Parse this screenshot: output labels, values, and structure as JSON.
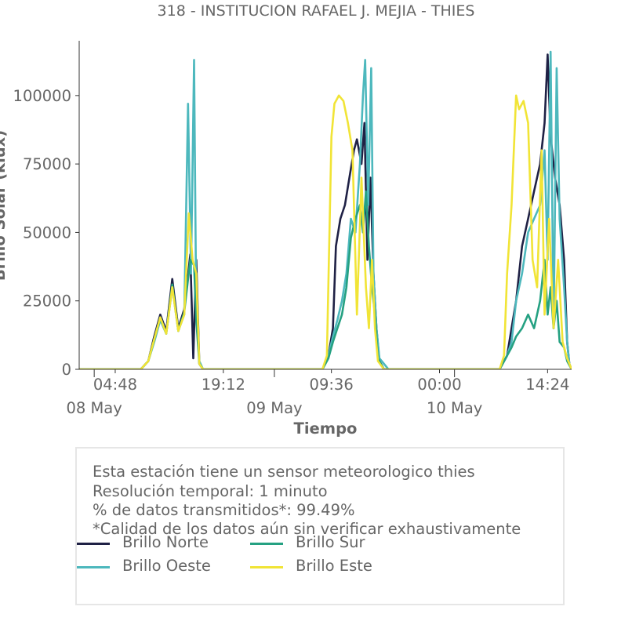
{
  "chart_data": {
    "type": "line",
    "title": "318 - INSTITUCION RAFAEL J. MEJIA - THIES",
    "xlabel": "Tiempo",
    "ylabel": "Brillo Solar (klux)",
    "ylim": [
      0,
      120000
    ],
    "yticks": [
      0,
      25000,
      50000,
      75000,
      100000
    ],
    "x_range_hours": [
      0,
      65.6
    ],
    "x_time_ticks": [
      {
        "h": 4.8,
        "label": "04:48"
      },
      {
        "h": 19.2,
        "label": "19:12"
      },
      {
        "h": 33.6,
        "label": "09:36"
      },
      {
        "h": 48.0,
        "label": "00:00"
      },
      {
        "h": 62.4,
        "label": "14:24"
      }
    ],
    "x_date_ticks": [
      {
        "h": 2.0,
        "label": "08 May"
      },
      {
        "h": 26.0,
        "label": "09 May"
      },
      {
        "h": 50.0,
        "label": "10 May"
      }
    ],
    "series": [
      {
        "name": "Brillo Norte",
        "color": "#1f2145",
        "points": [
          [
            0,
            0
          ],
          [
            8.2,
            0
          ],
          [
            9.2,
            3000
          ],
          [
            10,
            12000
          ],
          [
            10.8,
            20000
          ],
          [
            11.6,
            14000
          ],
          [
            12.4,
            33000
          ],
          [
            13.2,
            15000
          ],
          [
            14,
            22000
          ],
          [
            14.8,
            42000
          ],
          [
            15.2,
            4000
          ],
          [
            15.6,
            40000
          ],
          [
            16,
            2000
          ],
          [
            16.5,
            0
          ],
          [
            32.4,
            0
          ],
          [
            33.2,
            5000
          ],
          [
            33.8,
            15000
          ],
          [
            34.2,
            45000
          ],
          [
            34.8,
            55000
          ],
          [
            35.4,
            60000
          ],
          [
            36,
            70000
          ],
          [
            36.6,
            80000
          ],
          [
            37,
            84000
          ],
          [
            37.6,
            75000
          ],
          [
            38,
            90000
          ],
          [
            38.4,
            40000
          ],
          [
            38.8,
            70000
          ],
          [
            39.2,
            35000
          ],
          [
            39.6,
            15000
          ],
          [
            40,
            3000
          ],
          [
            40.6,
            0
          ],
          [
            56,
            0
          ],
          [
            57,
            5000
          ],
          [
            57.6,
            15000
          ],
          [
            58.2,
            25000
          ],
          [
            59,
            45000
          ],
          [
            59.8,
            55000
          ],
          [
            60.6,
            65000
          ],
          [
            61.4,
            75000
          ],
          [
            62,
            90000
          ],
          [
            62.4,
            115000
          ],
          [
            62.8,
            85000
          ],
          [
            63.4,
            70000
          ],
          [
            64,
            60000
          ],
          [
            64.6,
            40000
          ],
          [
            65,
            10000
          ],
          [
            65.3,
            2000
          ],
          [
            65.6,
            0
          ]
        ]
      },
      {
        "name": "Brillo Oeste",
        "color": "#4db8bd",
        "points": [
          [
            0,
            0
          ],
          [
            8.2,
            0
          ],
          [
            9.2,
            3000
          ],
          [
            10,
            10000
          ],
          [
            10.8,
            18000
          ],
          [
            11.6,
            13000
          ],
          [
            12.4,
            30000
          ],
          [
            13.2,
            14000
          ],
          [
            14,
            20000
          ],
          [
            14.5,
            97000
          ],
          [
            14.9,
            35000
          ],
          [
            15.3,
            113000
          ],
          [
            15.6,
            20000
          ],
          [
            16,
            3000
          ],
          [
            16.5,
            0
          ],
          [
            32.4,
            0
          ],
          [
            33.2,
            5000
          ],
          [
            33.8,
            12000
          ],
          [
            34.4,
            18000
          ],
          [
            35,
            25000
          ],
          [
            35.6,
            35000
          ],
          [
            36.2,
            55000
          ],
          [
            36.8,
            50000
          ],
          [
            37.4,
            75000
          ],
          [
            37.8,
            100000
          ],
          [
            38.1,
            113000
          ],
          [
            38.5,
            60000
          ],
          [
            38.9,
            110000
          ],
          [
            39.2,
            35000
          ],
          [
            39.6,
            15000
          ],
          [
            40,
            4000
          ],
          [
            40.6,
            2000
          ],
          [
            41.2,
            0
          ],
          [
            56,
            0
          ],
          [
            57,
            5000
          ],
          [
            57.6,
            10000
          ],
          [
            58.2,
            25000
          ],
          [
            59,
            35000
          ],
          [
            59.8,
            50000
          ],
          [
            60.6,
            55000
          ],
          [
            61.4,
            60000
          ],
          [
            62,
            80000
          ],
          [
            62.4,
            40000
          ],
          [
            62.8,
            116000
          ],
          [
            63.2,
            15000
          ],
          [
            63.6,
            110000
          ],
          [
            64,
            55000
          ],
          [
            64.6,
            30000
          ],
          [
            65,
            10000
          ],
          [
            65.3,
            2000
          ],
          [
            65.6,
            0
          ]
        ]
      },
      {
        "name": "Brillo Sur",
        "color": "#25a182",
        "points": [
          [
            0,
            0
          ],
          [
            8.2,
            0
          ],
          [
            9.2,
            3000
          ],
          [
            10,
            11000
          ],
          [
            10.8,
            19000
          ],
          [
            11.6,
            13000
          ],
          [
            12.4,
            31000
          ],
          [
            13.2,
            14000
          ],
          [
            14,
            21000
          ],
          [
            14.8,
            40000
          ],
          [
            15.3,
            38000
          ],
          [
            15.6,
            18000
          ],
          [
            16,
            2000
          ],
          [
            16.5,
            0
          ],
          [
            32.4,
            0
          ],
          [
            33.2,
            4000
          ],
          [
            33.8,
            10000
          ],
          [
            34.4,
            15000
          ],
          [
            35,
            20000
          ],
          [
            35.6,
            30000
          ],
          [
            36.2,
            48000
          ],
          [
            36.8,
            55000
          ],
          [
            37.4,
            60000
          ],
          [
            37.8,
            50000
          ],
          [
            38.2,
            65000
          ],
          [
            38.6,
            45000
          ],
          [
            39,
            30000
          ],
          [
            39.4,
            20000
          ],
          [
            39.8,
            4000
          ],
          [
            40.6,
            0
          ],
          [
            56,
            0
          ],
          [
            57,
            5000
          ],
          [
            57.6,
            8000
          ],
          [
            58.2,
            12000
          ],
          [
            59,
            15000
          ],
          [
            59.8,
            20000
          ],
          [
            60.6,
            15000
          ],
          [
            61.4,
            25000
          ],
          [
            62,
            40000
          ],
          [
            62.4,
            20000
          ],
          [
            62.8,
            30000
          ],
          [
            63.2,
            15000
          ],
          [
            63.6,
            25000
          ],
          [
            64,
            10000
          ],
          [
            64.6,
            8000
          ],
          [
            65,
            3000
          ],
          [
            65.6,
            0
          ]
        ]
      },
      {
        "name": "Brillo Este",
        "color": "#f1e436",
        "points": [
          [
            0,
            0
          ],
          [
            8.2,
            0
          ],
          [
            9.2,
            3000
          ],
          [
            10,
            11000
          ],
          [
            10.8,
            19000
          ],
          [
            11.6,
            13000
          ],
          [
            12.4,
            30000
          ],
          [
            13.2,
            14000
          ],
          [
            14,
            20000
          ],
          [
            14.6,
            57000
          ],
          [
            15.1,
            40000
          ],
          [
            15.6,
            35000
          ],
          [
            16,
            2000
          ],
          [
            16.5,
            0
          ],
          [
            32.4,
            0
          ],
          [
            33,
            5000
          ],
          [
            33.6,
            85000
          ],
          [
            34,
            97000
          ],
          [
            34.6,
            100000
          ],
          [
            35.2,
            98000
          ],
          [
            35.8,
            90000
          ],
          [
            36.4,
            80000
          ],
          [
            37,
            20000
          ],
          [
            37.6,
            70000
          ],
          [
            38.2,
            30000
          ],
          [
            38.6,
            15000
          ],
          [
            39,
            40000
          ],
          [
            39.4,
            15000
          ],
          [
            39.8,
            3000
          ],
          [
            40.6,
            0
          ],
          [
            56,
            0
          ],
          [
            56.6,
            5000
          ],
          [
            57,
            35000
          ],
          [
            57.6,
            60000
          ],
          [
            58.2,
            100000
          ],
          [
            58.6,
            95000
          ],
          [
            59.2,
            98000
          ],
          [
            59.8,
            90000
          ],
          [
            60.4,
            40000
          ],
          [
            61,
            30000
          ],
          [
            61.6,
            80000
          ],
          [
            62,
            20000
          ],
          [
            62.6,
            55000
          ],
          [
            63.2,
            15000
          ],
          [
            63.8,
            40000
          ],
          [
            64.4,
            10000
          ],
          [
            65,
            4000
          ],
          [
            65.6,
            0
          ]
        ]
      }
    ]
  },
  "info_box": {
    "lines": [
      "Esta estación tiene un sensor meteorologico thies",
      "Resolución temporal: 1 minuto",
      "% de datos transmitidos*: 99.49%",
      "*Calidad de los datos aún sin verificar exhaustivamente"
    ]
  }
}
